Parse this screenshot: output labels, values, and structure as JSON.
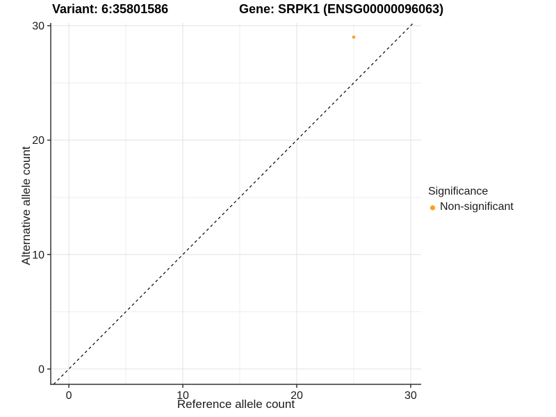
{
  "title_left": "Variant: 6:35801586",
  "title_right": "Gene: SRPK1 (ENSG00000096063)",
  "colors": {
    "point": "#FF9E1B",
    "grid_major": "#E2E2E2",
    "grid_minor": "#EEEEEE",
    "axis": "#333333",
    "tick_text": "#1A1A1A",
    "diagonal": "#000000",
    "background": "#FFFFFF"
  },
  "legend": {
    "title": "Significance",
    "items": [
      {
        "label": "Non-significant",
        "color": "#FF9E1B"
      }
    ]
  },
  "chart_data": {
    "type": "scatter",
    "title": "Variant: 6:35801586   Gene: SRPK1 (ENSG00000096063)",
    "xlabel": "Reference allele count",
    "ylabel": "Alternative allele count",
    "xlim": [
      -1.59,
      30.92
    ],
    "ylim": [
      -1.34,
      30.24
    ],
    "x_ticks": [
      0,
      10,
      20,
      30
    ],
    "y_ticks": [
      0,
      10,
      20,
      30
    ],
    "x_minor_ticks": [
      5,
      15,
      25
    ],
    "y_minor_ticks": [
      5,
      15,
      25
    ],
    "grid": true,
    "legend_position": "right",
    "series": [
      {
        "name": "Non-significant",
        "points": [
          {
            "x": 25,
            "y": 29
          }
        ]
      }
    ],
    "reference_line": {
      "type": "identity",
      "slope": 1,
      "intercept": 0,
      "style": "dashed"
    }
  }
}
